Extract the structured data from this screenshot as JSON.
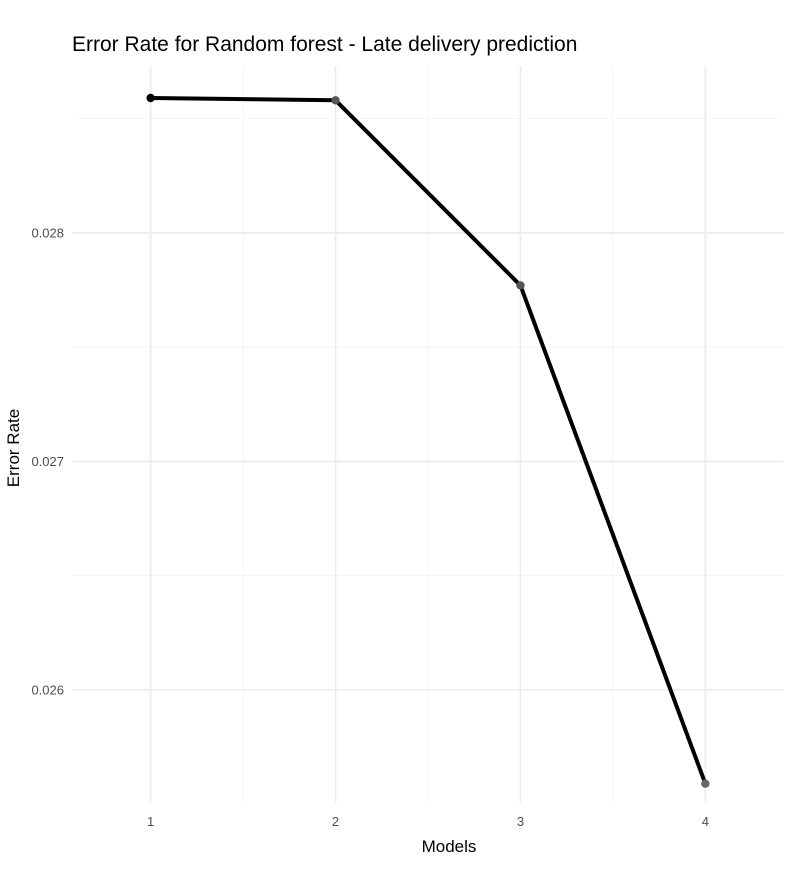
{
  "chart_data": {
    "type": "line",
    "title": "Error Rate for Random forest - Late delivery prediction",
    "xlabel": "Models",
    "ylabel": "Error Rate",
    "x": [
      1,
      2,
      3,
      4
    ],
    "series": [
      {
        "values": [
          0.02859,
          0.02858,
          0.02777,
          0.02559
        ]
      }
    ],
    "xlim": [
      0.58,
      4.42
    ],
    "ylim": [
      0.02551,
      0.02873
    ],
    "x_ticks": [
      1,
      2,
      3,
      4
    ],
    "x_tick_labels": [
      "1",
      "2",
      "3",
      "4"
    ],
    "y_ticks": [
      0.026,
      0.027,
      0.028
    ],
    "y_tick_labels": [
      "0.026",
      "0.027",
      "0.028"
    ],
    "grid": true,
    "legend": "none",
    "line_color": "#000000",
    "point_colors": [
      "#000000",
      "#555555",
      "#555555",
      "#666666"
    ]
  }
}
